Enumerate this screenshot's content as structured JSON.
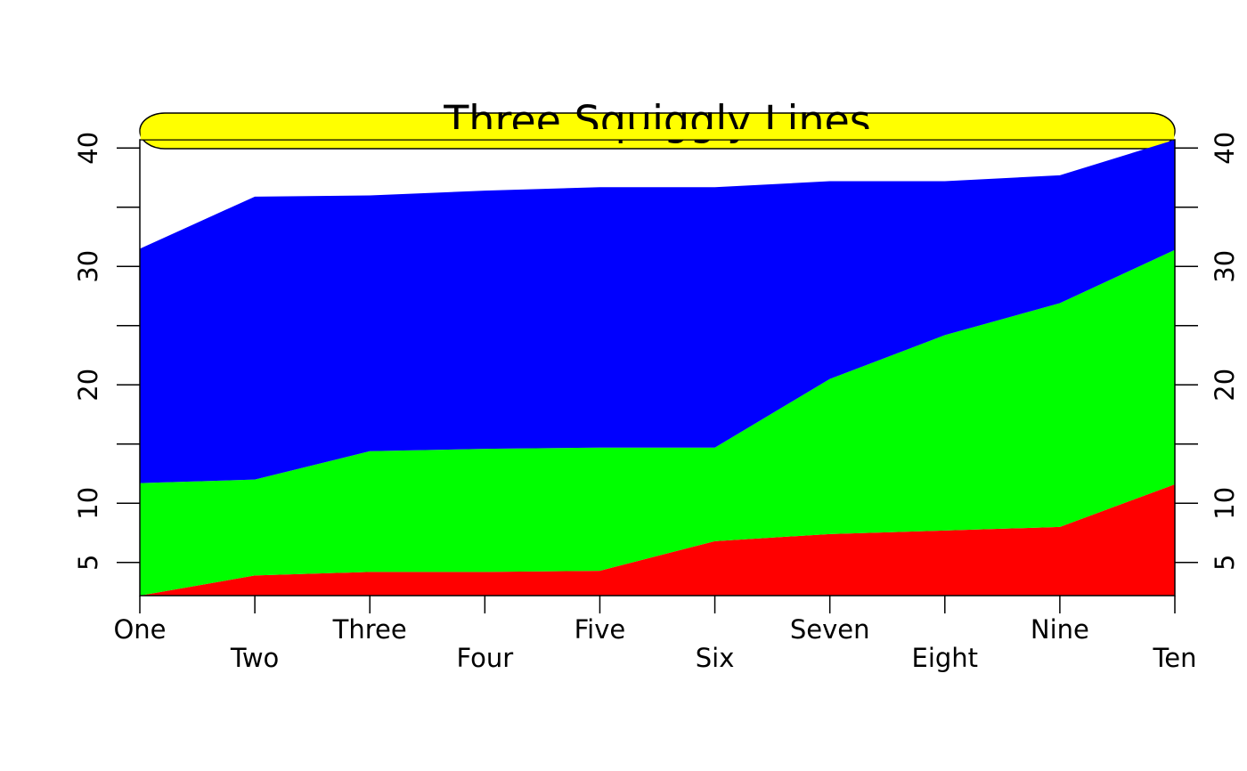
{
  "chart_data": {
    "type": "stacked-area",
    "title": "Three Squiggly Lines",
    "title_background": "#ffff00",
    "categories": [
      "One",
      "Two",
      "Three",
      "Four",
      "Five",
      "Six",
      "Seven",
      "Eight",
      "Nine",
      "Ten"
    ],
    "series": [
      {
        "color": "#ff0000",
        "values": [
          2.2,
          3.9,
          4.2,
          4.2,
          4.3,
          6.8,
          7.4,
          7.7,
          8.0,
          11.6
        ]
      },
      {
        "color": "#00ff00",
        "values": [
          9.5,
          8.1,
          10.2,
          10.4,
          10.4,
          7.9,
          13.1,
          16.5,
          18.9,
          19.8
        ]
      },
      {
        "color": "#0000ff",
        "values": [
          19.8,
          23.9,
          21.6,
          21.8,
          22.0,
          22.0,
          16.7,
          13.0,
          10.8,
          9.3
        ]
      }
    ],
    "ylim": [
      2.2,
      40.7
    ],
    "yticks": [
      5,
      10,
      20,
      30,
      40
    ],
    "minor_yticks": [
      15,
      25,
      35
    ],
    "right_axis": true
  }
}
